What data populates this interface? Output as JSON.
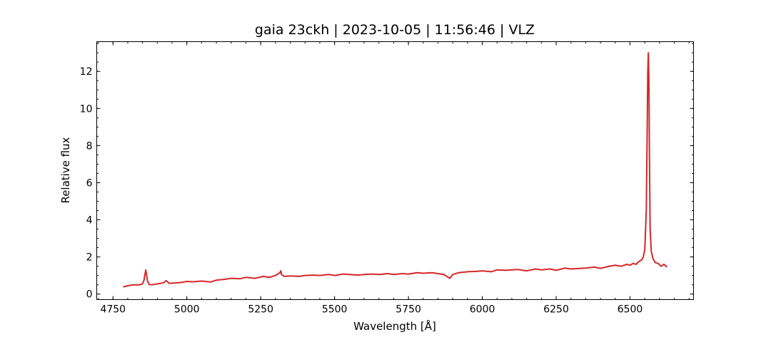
{
  "chart_data": {
    "type": "line",
    "title": "gaia 23ckh | 2023-10-05 | 11:56:46 | VLZ",
    "xlabel": "Wavelength [Å]",
    "ylabel": "Relative flux",
    "xlim": [
      4695,
      6715
    ],
    "ylim": [
      -0.3,
      13.6
    ],
    "x_ticks": [
      4750,
      5000,
      5250,
      5500,
      5750,
      6000,
      6250,
      6500
    ],
    "x_tick_labels": [
      "4750",
      "5000",
      "5250",
      "5500",
      "5750",
      "6000",
      "6250",
      "6500"
    ],
    "y_ticks": [
      0,
      2,
      4,
      6,
      8,
      10,
      12
    ],
    "y_tick_labels": [
      "0",
      "2",
      "4",
      "6",
      "8",
      "10",
      "12"
    ],
    "x_minor_step": 50,
    "y_minor_step": 0.5,
    "grid": false,
    "legend": "none",
    "series": [
      {
        "color": "#d62728",
        "x": [
          4785,
          4800,
          4820,
          4840,
          4850,
          4855,
          4858,
          4861,
          4864,
          4867,
          4872,
          4880,
          4900,
          4920,
          4930,
          4940,
          4960,
          4980,
          5000,
          5020,
          5050,
          5080,
          5100,
          5130,
          5150,
          5180,
          5200,
          5230,
          5260,
          5280,
          5300,
          5315,
          5318,
          5320,
          5330,
          5350,
          5380,
          5400,
          5430,
          5450,
          5480,
          5500,
          5530,
          5550,
          5580,
          5600,
          5630,
          5650,
          5680,
          5700,
          5730,
          5750,
          5780,
          5800,
          5830,
          5850,
          5870,
          5890,
          5900,
          5920,
          5950,
          5980,
          6000,
          6030,
          6050,
          6080,
          6100,
          6120,
          6150,
          6180,
          6200,
          6230,
          6250,
          6280,
          6300,
          6330,
          6350,
          6380,
          6400,
          6430,
          6450,
          6470,
          6490,
          6500,
          6510,
          6520,
          6530,
          6540,
          6545,
          6550,
          6555,
          6558,
          6560,
          6562,
          6564,
          6566,
          6568,
          6572,
          6578,
          6585,
          6595,
          6605,
          6615,
          6625
        ],
        "y": [
          0.38,
          0.45,
          0.5,
          0.5,
          0.55,
          0.75,
          1.05,
          1.3,
          1.0,
          0.7,
          0.52,
          0.5,
          0.55,
          0.6,
          0.72,
          0.58,
          0.6,
          0.62,
          0.68,
          0.66,
          0.7,
          0.65,
          0.75,
          0.8,
          0.85,
          0.82,
          0.9,
          0.85,
          0.95,
          0.9,
          1.0,
          1.15,
          1.25,
          1.05,
          0.95,
          0.98,
          0.95,
          1.0,
          1.02,
          1.0,
          1.05,
          1.0,
          1.08,
          1.05,
          1.02,
          1.05,
          1.08,
          1.05,
          1.1,
          1.05,
          1.1,
          1.08,
          1.15,
          1.12,
          1.15,
          1.1,
          1.05,
          0.85,
          1.05,
          1.15,
          1.2,
          1.22,
          1.25,
          1.2,
          1.3,
          1.28,
          1.3,
          1.32,
          1.25,
          1.35,
          1.3,
          1.35,
          1.28,
          1.4,
          1.35,
          1.38,
          1.4,
          1.45,
          1.38,
          1.5,
          1.55,
          1.5,
          1.6,
          1.55,
          1.65,
          1.6,
          1.75,
          1.85,
          2.0,
          2.4,
          4.5,
          8.5,
          12.0,
          13.0,
          11.5,
          7.0,
          3.5,
          2.3,
          1.9,
          1.7,
          1.65,
          1.5,
          1.6,
          1.45
        ]
      }
    ]
  }
}
